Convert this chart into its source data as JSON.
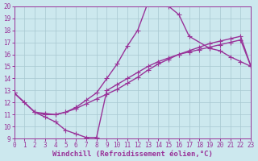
{
  "background_color": "#cce8ee",
  "line_color": "#993399",
  "grid_color": "#a8c8d0",
  "xlim": [
    0,
    23
  ],
  "ylim": [
    9,
    20
  ],
  "xticks": [
    0,
    1,
    2,
    3,
    4,
    5,
    6,
    7,
    8,
    9,
    10,
    11,
    12,
    13,
    14,
    15,
    16,
    17,
    18,
    19,
    20,
    21,
    22,
    23
  ],
  "yticks": [
    9,
    10,
    11,
    12,
    13,
    14,
    15,
    16,
    17,
    18,
    19,
    20
  ],
  "line_top_x": [
    0,
    2,
    3,
    4,
    5,
    6,
    7,
    8,
    9,
    10,
    11,
    12,
    13,
    14,
    15,
    16,
    17,
    19,
    20,
    21,
    22,
    23
  ],
  "line_top_y": [
    12.8,
    11.2,
    11.1,
    11.0,
    11.2,
    11.6,
    12.2,
    12.8,
    14.0,
    15.2,
    16.7,
    18.0,
    20.3,
    20.3,
    20.0,
    19.3,
    17.5,
    16.5,
    16.3,
    15.8,
    15.4,
    15.0
  ],
  "line_mid_x": [
    0,
    2,
    3,
    4,
    5,
    6,
    7,
    8,
    9,
    10,
    11,
    12,
    13,
    14,
    15,
    16,
    17,
    18,
    19,
    20,
    21,
    22,
    23
  ],
  "line_mid_y": [
    12.8,
    11.2,
    11.0,
    11.0,
    11.2,
    11.5,
    11.9,
    12.3,
    12.7,
    13.1,
    13.6,
    14.1,
    14.7,
    15.2,
    15.6,
    16.0,
    16.3,
    16.6,
    16.9,
    17.1,
    17.3,
    17.5,
    15.0
  ],
  "line_bot_x": [
    0,
    1,
    2,
    3,
    4,
    5,
    6,
    7,
    8,
    9,
    10,
    11,
    12,
    13,
    14,
    15,
    16,
    17,
    18,
    19,
    20,
    21,
    22,
    23
  ],
  "line_bot_y": [
    12.8,
    12.0,
    11.2,
    10.8,
    10.4,
    9.7,
    9.4,
    9.1,
    9.1,
    13.0,
    13.5,
    14.0,
    14.5,
    15.0,
    15.4,
    15.7,
    16.0,
    16.2,
    16.4,
    16.6,
    16.8,
    17.0,
    17.2,
    15.0
  ],
  "marker": "+",
  "markersize": 4,
  "linewidth": 1.0,
  "tick_fontsize": 5.5,
  "xlabel": "Windchill (Refroidissement éolien,°C)",
  "xlabel_fontsize": 6.5
}
